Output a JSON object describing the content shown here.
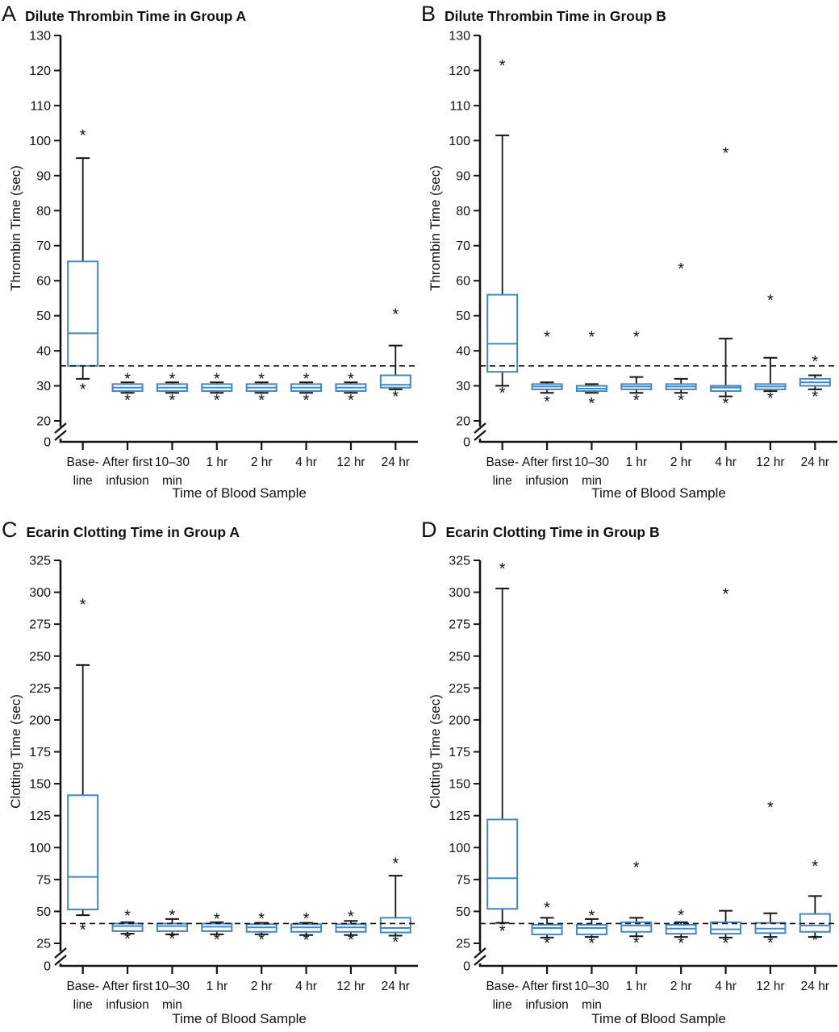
{
  "figure_title": "",
  "colors": {
    "box_stroke": "#4287c0",
    "axis": "#151515",
    "reference_line": "#151515",
    "outlier": "#111111",
    "background": "#ffffff"
  },
  "chart_data": [
    {
      "type": "box",
      "panel_letter": "A",
      "title": "Dilute Thrombin Time in Group A",
      "ylabel": "Thrombin Time (sec)",
      "xlabel": "Time of Blood Sample",
      "zero_label": "0",
      "ylim": [
        20,
        130
      ],
      "yticks": [
        20,
        30,
        40,
        50,
        60,
        70,
        80,
        90,
        100,
        110,
        120,
        130
      ],
      "reference_line": 35.7,
      "axis_break": true,
      "grid": false,
      "categories": [
        [
          "Base-",
          "line"
        ],
        [
          "After first",
          "infusion"
        ],
        [
          "10–30",
          "min"
        ],
        [
          "1 hr"
        ],
        [
          "2 hr"
        ],
        [
          "4 hr"
        ],
        [
          "12 hr"
        ],
        [
          "24 hr"
        ]
      ],
      "boxes": [
        {
          "label": "Baseline",
          "q1": 35.7,
          "median": 45,
          "q3": 65.5,
          "whisker_low": 32,
          "whisker_high": 95,
          "outliers_high": [
            102
          ],
          "outliers_low": [
            29.5
          ]
        },
        {
          "label": "After first infusion",
          "q1": 28.5,
          "median": 29.5,
          "q3": 30.5,
          "whisker_low": 28,
          "whisker_high": 31,
          "outliers_high": [
            32.5
          ],
          "outliers_low": [
            26.5
          ]
        },
        {
          "label": "10-30 min",
          "q1": 28.5,
          "median": 29.5,
          "q3": 30.5,
          "whisker_low": 28,
          "whisker_high": 31,
          "outliers_high": [
            32.5
          ],
          "outliers_low": [
            26.5
          ]
        },
        {
          "label": "1 hr",
          "q1": 28.5,
          "median": 29.5,
          "q3": 30.5,
          "whisker_low": 28,
          "whisker_high": 31,
          "outliers_high": [
            32.5
          ],
          "outliers_low": [
            26.5
          ]
        },
        {
          "label": "2 hr",
          "q1": 28.5,
          "median": 29.5,
          "q3": 30.5,
          "whisker_low": 28,
          "whisker_high": 31,
          "outliers_high": [
            32.5
          ],
          "outliers_low": [
            26.5
          ]
        },
        {
          "label": "4 hr",
          "q1": 28.5,
          "median": 29.5,
          "q3": 30.5,
          "whisker_low": 28,
          "whisker_high": 31,
          "outliers_high": [
            32.5
          ],
          "outliers_low": [
            26.5
          ]
        },
        {
          "label": "12 hr",
          "q1": 28.5,
          "median": 29.5,
          "q3": 30.5,
          "whisker_low": 28,
          "whisker_high": 31,
          "outliers_high": [
            32.5
          ],
          "outliers_low": [
            26.5
          ]
        },
        {
          "label": "24 hr",
          "q1": 29.5,
          "median": 30.3,
          "q3": 33,
          "whisker_low": 29,
          "whisker_high": 41.5,
          "outliers_high": [
            51
          ],
          "outliers_low": [
            27.5
          ]
        }
      ]
    },
    {
      "type": "box",
      "panel_letter": "B",
      "title": "Dilute Thrombin Time in Group B",
      "ylabel": "Thrombin Time (sec)",
      "xlabel": "Time of Blood Sample",
      "zero_label": "0",
      "ylim": [
        20,
        130
      ],
      "yticks": [
        20,
        30,
        40,
        50,
        60,
        70,
        80,
        90,
        100,
        110,
        120,
        130
      ],
      "reference_line": 35.7,
      "axis_break": true,
      "grid": false,
      "categories": [
        [
          "Base-",
          "line"
        ],
        [
          "After first",
          "infusion"
        ],
        [
          "10–30",
          "min"
        ],
        [
          "1 hr"
        ],
        [
          "2 hr"
        ],
        [
          "4 hr"
        ],
        [
          "12 hr"
        ],
        [
          "24 hr"
        ]
      ],
      "boxes": [
        {
          "label": "Baseline",
          "q1": 34,
          "median": 42,
          "q3": 56,
          "whisker_low": 30,
          "whisker_high": 101.5,
          "outliers_high": [
            122
          ],
          "outliers_low": [
            28.5
          ]
        },
        {
          "label": "After first infusion",
          "q1": 29,
          "median": 29.8,
          "q3": 30.5,
          "whisker_low": 28,
          "whisker_high": 31,
          "outliers_high": [
            44.5
          ],
          "outliers_low": [
            26
          ]
        },
        {
          "label": "10-30 min",
          "q1": 28.5,
          "median": 29.2,
          "q3": 30,
          "whisker_low": 28,
          "whisker_high": 30.5,
          "outliers_high": [
            44.5
          ],
          "outliers_low": [
            25.5
          ]
        },
        {
          "label": "1 hr",
          "q1": 29,
          "median": 29.8,
          "q3": 30.5,
          "whisker_low": 28,
          "whisker_high": 32.5,
          "outliers_high": [
            44.5
          ],
          "outliers_low": [
            26.5
          ]
        },
        {
          "label": "2 hr",
          "q1": 29,
          "median": 29.8,
          "q3": 30.5,
          "whisker_low": 28,
          "whisker_high": 32,
          "outliers_high": [
            64
          ],
          "outliers_low": [
            26.5
          ]
        },
        {
          "label": "4 hr",
          "q1": 28.5,
          "median": 29.5,
          "q3": 30,
          "whisker_low": 27,
          "whisker_high": 43.5,
          "outliers_high": [
            97
          ],
          "outliers_low": [
            25.5
          ]
        },
        {
          "label": "12 hr",
          "q1": 29,
          "median": 29.8,
          "q3": 30.5,
          "whisker_low": 28.5,
          "whisker_high": 38,
          "outliers_high": [
            55
          ],
          "outliers_low": [
            27
          ]
        },
        {
          "label": "24 hr",
          "q1": 30,
          "median": 31,
          "q3": 32,
          "whisker_low": 29,
          "whisker_high": 33,
          "outliers_high": [
            37.5
          ],
          "outliers_low": [
            27.5
          ]
        }
      ]
    },
    {
      "type": "box",
      "panel_letter": "C",
      "title": "Ecarin Clotting Time in Group A",
      "ylabel": "Clotting Time (sec)",
      "xlabel": "Time of Blood Sample",
      "zero_label": "0",
      "ylim": [
        25,
        325
      ],
      "yticks": [
        25,
        50,
        75,
        100,
        125,
        150,
        175,
        200,
        225,
        250,
        275,
        300,
        325
      ],
      "reference_line": 40.5,
      "axis_break": true,
      "grid": false,
      "categories": [
        [
          "Base-",
          "line"
        ],
        [
          "After first",
          "infusion"
        ],
        [
          "10–30",
          "min"
        ],
        [
          "1 hr"
        ],
        [
          "2 hr"
        ],
        [
          "4 hr"
        ],
        [
          "12 hr"
        ],
        [
          "24 hr"
        ]
      ],
      "boxes": [
        {
          "label": "Baseline",
          "q1": 51.5,
          "median": 77,
          "q3": 141,
          "whisker_low": 47,
          "whisker_high": 243,
          "outliers_high": [
            292
          ],
          "outliers_low": [
            37
          ]
        },
        {
          "label": "After first infusion",
          "q1": 34.5,
          "median": 38.5,
          "q3": 40.5,
          "whisker_low": 32.5,
          "whisker_high": 41.5,
          "outliers_high": [
            48
          ],
          "outliers_low": [
            30
          ]
        },
        {
          "label": "10-30 min",
          "q1": 34.5,
          "median": 38.5,
          "q3": 40.5,
          "whisker_low": 32,
          "whisker_high": 44,
          "outliers_high": [
            48.5
          ],
          "outliers_low": [
            30
          ]
        },
        {
          "label": "1 hr",
          "q1": 34.5,
          "median": 38,
          "q3": 40.5,
          "whisker_low": 32,
          "whisker_high": 41.5,
          "outliers_high": [
            45.5
          ],
          "outliers_low": [
            29.5
          ]
        },
        {
          "label": "2 hr",
          "q1": 34,
          "median": 37.5,
          "q3": 40,
          "whisker_low": 32,
          "whisker_high": 41,
          "outliers_high": [
            46
          ],
          "outliers_low": [
            29.5
          ]
        },
        {
          "label": "4 hr",
          "q1": 34,
          "median": 37.5,
          "q3": 40,
          "whisker_low": 31.5,
          "whisker_high": 41,
          "outliers_high": [
            46
          ],
          "outliers_low": [
            29
          ]
        },
        {
          "label": "12 hr",
          "q1": 34,
          "median": 37.5,
          "q3": 40,
          "whisker_low": 31.5,
          "whisker_high": 42.5,
          "outliers_high": [
            47.5
          ],
          "outliers_low": [
            29
          ]
        },
        {
          "label": "24 hr",
          "q1": 33.5,
          "median": 37,
          "q3": 45,
          "whisker_low": 31,
          "whisker_high": 78,
          "outliers_high": [
            89
          ],
          "outliers_low": [
            27.5
          ]
        }
      ]
    },
    {
      "type": "box",
      "panel_letter": "D",
      "title": "Ecarin Clotting Time in Group B",
      "ylabel": "Clotting Time (sec)",
      "xlabel": "Time of Blood Sample",
      "zero_label": "0",
      "ylim": [
        25,
        325
      ],
      "yticks": [
        25,
        50,
        75,
        100,
        125,
        150,
        175,
        200,
        225,
        250,
        275,
        300,
        325
      ],
      "reference_line": 40.5,
      "axis_break": true,
      "grid": false,
      "categories": [
        [
          "Base-",
          "line"
        ],
        [
          "After first",
          "infusion"
        ],
        [
          "10–30",
          "min"
        ],
        [
          "1 hr"
        ],
        [
          "2 hr"
        ],
        [
          "4 hr"
        ],
        [
          "12 hr"
        ],
        [
          "24 hr"
        ]
      ],
      "boxes": [
        {
          "label": "Baseline",
          "q1": 52,
          "median": 76,
          "q3": 122,
          "whisker_low": 41,
          "whisker_high": 303,
          "outliers_high": [
            320
          ],
          "outliers_low": [
            36
          ]
        },
        {
          "label": "After first infusion",
          "q1": 32,
          "median": 37,
          "q3": 39.5,
          "whisker_low": 29.5,
          "whisker_high": 45,
          "outliers_high": [
            54.5
          ],
          "outliers_low": [
            26.5
          ]
        },
        {
          "label": "10-30 min",
          "q1": 32,
          "median": 37,
          "q3": 39.5,
          "whisker_low": 30,
          "whisker_high": 44,
          "outliers_high": [
            48
          ],
          "outliers_low": [
            26.5
          ]
        },
        {
          "label": "1 hr",
          "q1": 34,
          "median": 39,
          "q3": 41.5,
          "whisker_low": 30.5,
          "whisker_high": 45,
          "outliers_high": [
            86
          ],
          "outliers_low": [
            27
          ]
        },
        {
          "label": "2 hr",
          "q1": 32.5,
          "median": 36.5,
          "q3": 39.5,
          "whisker_low": 30,
          "whisker_high": 41.5,
          "outliers_high": [
            48.5
          ],
          "outliers_low": [
            26.5
          ]
        },
        {
          "label": "4 hr",
          "q1": 32.5,
          "median": 36,
          "q3": 41.5,
          "whisker_low": 29.5,
          "whisker_high": 50.5,
          "outliers_high": [
            300
          ],
          "outliers_low": [
            26.5
          ]
        },
        {
          "label": "12 hr",
          "q1": 33,
          "median": 36.5,
          "q3": 41,
          "whisker_low": 30,
          "whisker_high": 48.5,
          "outliers_high": [
            133
          ],
          "outliers_low": [
            27
          ]
        },
        {
          "label": "24 hr",
          "q1": 34,
          "median": 39,
          "q3": 48,
          "whisker_low": 30,
          "whisker_high": 62,
          "outliers_high": [
            87
          ],
          "outliers_low": [
            29
          ]
        }
      ]
    }
  ]
}
